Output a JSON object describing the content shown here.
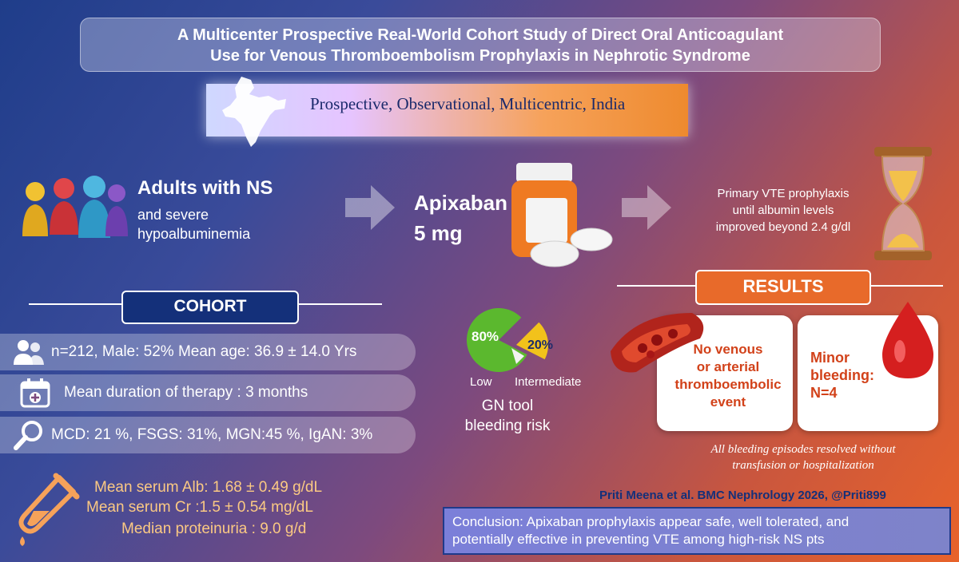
{
  "title": {
    "line1": "A Multicenter Prospective Real-World Cohort Study of Direct Oral Anticoagulant",
    "line2": "Use for Venous Thromboembolism Prophylaxis in Nephrotic Syndrome"
  },
  "banner": {
    "text": "Prospective, Observational, Multicentric, India"
  },
  "population": {
    "heading": "Adults with NS",
    "line1": "and severe",
    "line2": "hypoalbuminemia"
  },
  "drug": {
    "name": "Apixaban",
    "dose": "5 mg"
  },
  "prophylaxis": {
    "line1": "Primary VTE prophylaxis",
    "line2": "until albumin levels",
    "line3": "improved beyond 2.4 g/dl"
  },
  "cohort": {
    "heading": "COHORT",
    "demographics": "n=212, Male: 52% Mean age: 36.9 ± 14.0 Yrs",
    "duration": "Mean duration of therapy : 3 months",
    "diagnoses": "MCD: 21 %, FSGS: 31%, MGN:45 %, IgAN: 3%"
  },
  "labs": {
    "albumin": "Mean serum Alb: 1.68 ± 0.49 g/dL",
    "creatinine": "Mean serum Cr :1.5 ± 0.54 mg/dL",
    "proteinuria": "Median proteinuria : 9.0 g/d"
  },
  "bleeding_risk": {
    "low_pct": "80%",
    "intermediate_pct": "20%",
    "low_label": "Low",
    "intermediate_label": "Intermediate",
    "caption1": "GN tool",
    "caption2": "bleeding risk",
    "low_value": 80,
    "intermediate_value": 20,
    "colors": {
      "low": "#5bb82e",
      "intermediate": "#f2c21b"
    }
  },
  "results": {
    "heading": "RESULTS",
    "thrombo": {
      "line1": "No venous",
      "line2": "or arterial",
      "line3": "thromboembolic",
      "line4": "event"
    },
    "bleeding": {
      "line1": "Minor",
      "line2": "bleeding:",
      "line3": "N=4"
    },
    "resolved1": "All bleeding episodes resolved without",
    "resolved2": "transfusion or hospitalization"
  },
  "citation": "Priti Meena et al. BMC Nephrology 2026, @Priti899",
  "conclusion": {
    "line1": "Conclusion: Apixaban prophylaxis appear safe, well tolerated, and",
    "line2": "potentially effective in preventing VTE among high-risk NS pts"
  },
  "icons": [
    "india-map-icon",
    "people-icon",
    "arrow-right-icon",
    "pill-bottle-icon",
    "hourglass-icon",
    "users-icon",
    "calendar-medical-icon",
    "magnifier-icon",
    "test-tube-icon",
    "blood-vessel-icon",
    "blood-drop-icon"
  ]
}
